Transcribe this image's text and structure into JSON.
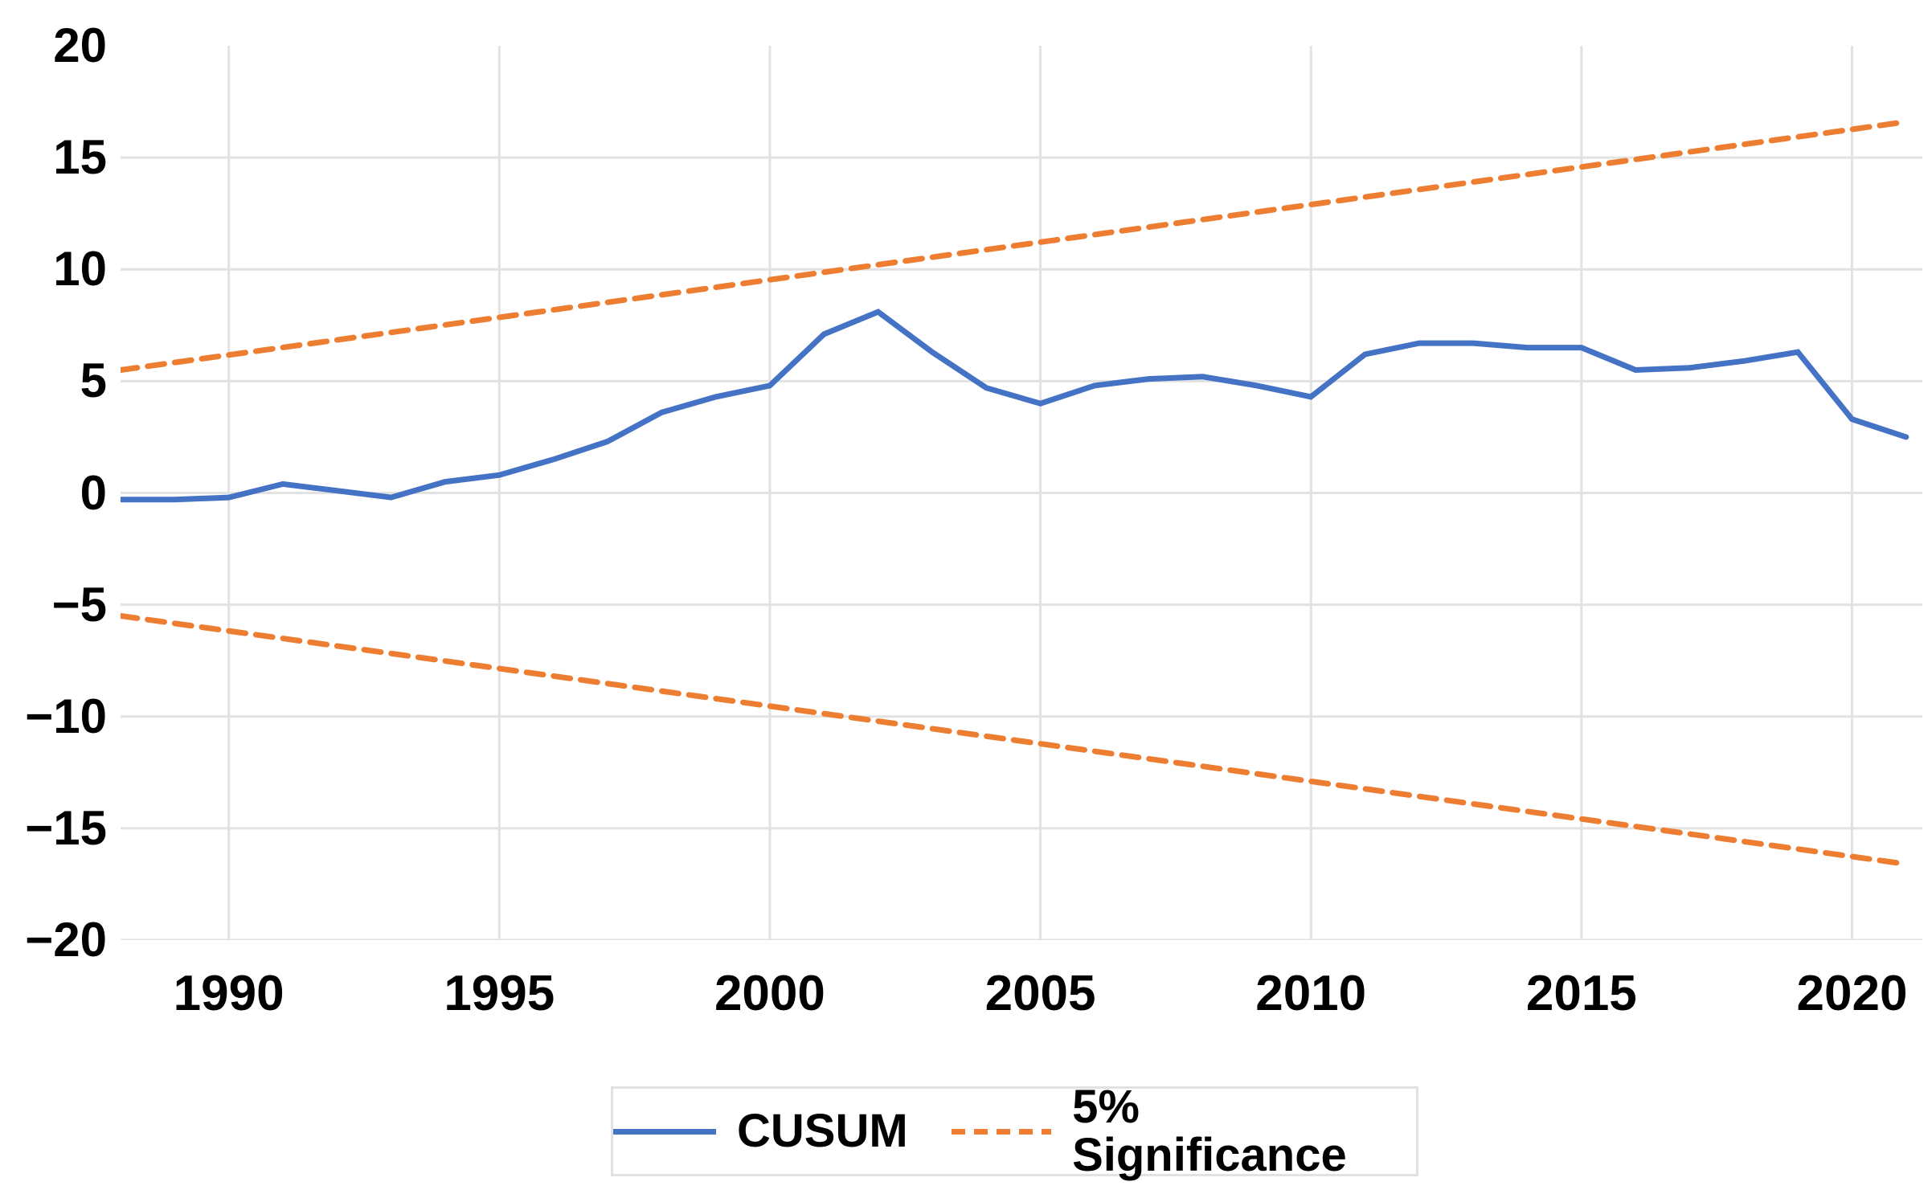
{
  "chart_data": {
    "type": "line",
    "title": "",
    "xlabel": "",
    "ylabel": "",
    "x_axis": {
      "min": 1988,
      "max": 2021.3,
      "ticks": [
        1990,
        1995,
        2000,
        2005,
        2010,
        2015,
        2020
      ],
      "tick_labels": [
        "1990",
        "1995",
        "2000",
        "2005",
        "2010",
        "2015",
        "2020"
      ]
    },
    "y_axis": {
      "min": -20,
      "max": 20,
      "ticks": [
        20,
        15,
        10,
        5,
        0,
        -5,
        -10,
        -15,
        -20
      ],
      "tick_labels": [
        "20",
        "15",
        "10",
        "5",
        "0",
        "−5",
        "−10",
        "−15",
        "−20"
      ],
      "gridline_values": [
        15,
        10,
        5,
        0,
        -5,
        -10,
        -15,
        -20
      ]
    },
    "grid": {
      "color": "#e2e2e2",
      "vertical_on": true,
      "horizontal_on": true
    },
    "series": [
      {
        "name": "CUSUM",
        "style": "solid",
        "color": "#4472C4",
        "x": [
          1988,
          1989,
          1990,
          1991,
          1992,
          1993,
          1994,
          1995,
          1996,
          1997,
          1998,
          1999,
          2000,
          2001,
          2002,
          2003,
          2004,
          2005,
          2006,
          2007,
          2008,
          2009,
          2010,
          2011,
          2012,
          2013,
          2014,
          2015,
          2016,
          2017,
          2018,
          2019,
          2020,
          2021
        ],
        "values": [
          -0.3,
          -0.3,
          -0.2,
          0.4,
          0.1,
          -0.2,
          0.5,
          0.8,
          1.5,
          2.3,
          3.6,
          4.3,
          4.8,
          7.1,
          8.1,
          6.3,
          4.7,
          4.0,
          4.8,
          5.1,
          5.2,
          4.8,
          4.3,
          6.2,
          6.7,
          6.7,
          6.5,
          6.5,
          5.5,
          5.6,
          5.9,
          6.3,
          3.3,
          2.5
        ]
      },
      {
        "name": "5% Significance upper bound",
        "style": "dashed",
        "color": "#ED7D31",
        "x": [
          1988,
          2021
        ],
        "values": [
          5.5,
          16.6
        ]
      },
      {
        "name": "5% Significance lower bound",
        "style": "dashed",
        "color": "#ED7D31",
        "x": [
          1988,
          2021
        ],
        "values": [
          -5.5,
          -16.6
        ]
      }
    ],
    "legend": {
      "position": "bottom-center",
      "entries": [
        {
          "label": "CUSUM",
          "color": "#4472C4",
          "dash": false
        },
        {
          "label": "5% Significance",
          "color": "#ED7D31",
          "dash": true
        }
      ]
    }
  }
}
